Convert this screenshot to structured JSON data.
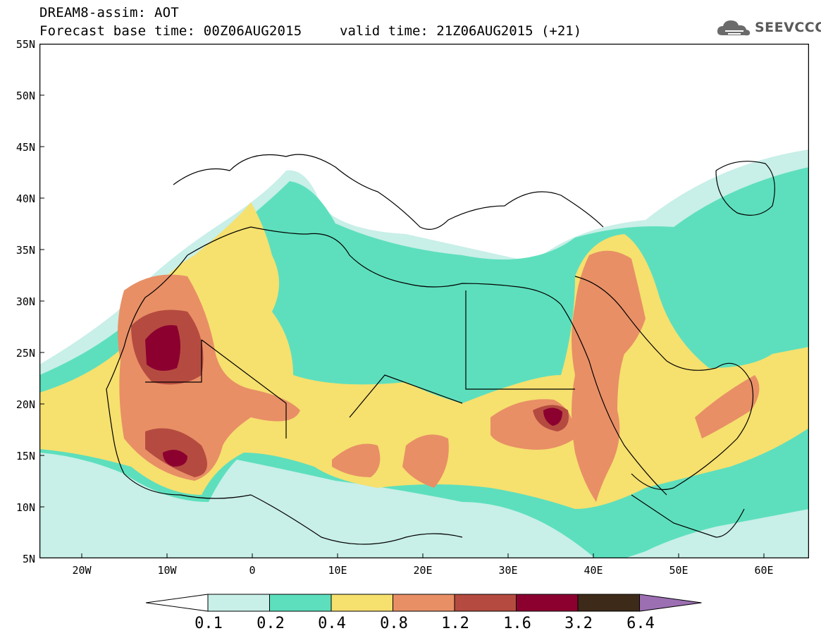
{
  "header": {
    "title": "DREAM8-assim: AOT",
    "base_time": "Forecast base time: 00Z06AUG2015",
    "valid_time": "valid time: 21Z06AUG2015 (+21)"
  },
  "logo": {
    "text": "SEEVCCC",
    "icon": "cloud-icon"
  },
  "map": {
    "lat_labels": [
      "55N",
      "50N",
      "45N",
      "40N",
      "35N",
      "30N",
      "25N",
      "20N",
      "15N",
      "10N",
      "5N"
    ],
    "lon_labels": [
      "20W",
      "10W",
      "0",
      "10E",
      "20E",
      "30E",
      "40E",
      "50E",
      "60E"
    ]
  },
  "legend": {
    "labels": [
      "0.1",
      "0.2",
      "0.4",
      "0.8",
      "1.2",
      "1.6",
      "3.2",
      "6.4"
    ],
    "colors": [
      "#ffffff",
      "#c8efe8",
      "#5ddfbd",
      "#f6e06e",
      "#e88f66",
      "#b54b40",
      "#8c0030",
      "#3d2a18",
      "#9c6fb3"
    ]
  }
}
